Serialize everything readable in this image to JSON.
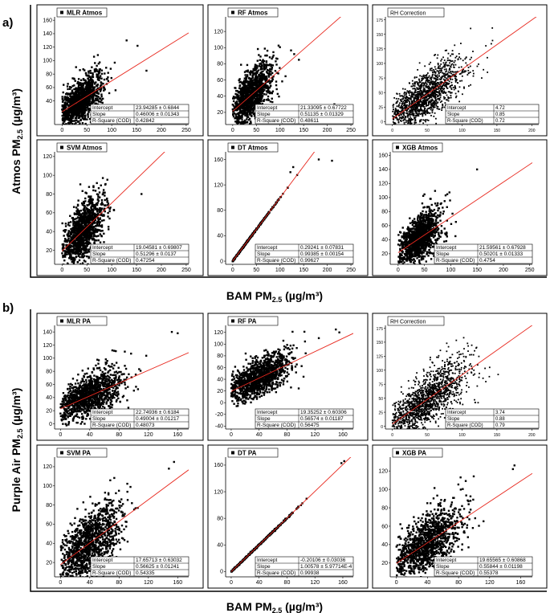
{
  "figure": {
    "section_labels": [
      "a)",
      "b)"
    ],
    "row_a": {
      "x_title": "BAM PM",
      "x_sub": "2.5",
      "x_unit": "(µg/m³)",
      "y_title": "Atmos PM",
      "y_sub": "2.5",
      "y_unit": "(µg/m³)"
    },
    "row_b": {
      "x_title": "BAM PM",
      "x_sub": "2.5",
      "x_unit": "(µg/m³)",
      "y_title": "Purple Air PM",
      "y_sub": "2.5",
      "y_unit": "(µg/m³)"
    },
    "stats_labels": [
      "Intercept",
      "Slope",
      "R-Square (COD)"
    ]
  },
  "colors": {
    "points": "#000000",
    "fit_line": "#e8281e",
    "frame": "#000000"
  },
  "chart_data": [
    {
      "type": "scatter",
      "title": "MLR Atmos",
      "style": "normal",
      "x_ticks": [
        0,
        50,
        100,
        150,
        200,
        250
      ],
      "y_ticks": [
        40,
        60,
        80,
        100,
        120,
        140,
        160
      ],
      "xlim": [
        -15,
        255
      ],
      "ylim": [
        5,
        165
      ],
      "intercept": 23.94285,
      "slope": 0.46006,
      "stats": [
        "23.94285 ± 0.6844",
        "0.46006 ± 0.01343",
        "0.42842"
      ],
      "cloud": {
        "xc": 38,
        "xs": 22,
        "yc": 42,
        "ys": 13,
        "n": 1200,
        "xmax": 130,
        "ymax": 160
      },
      "extra_points": [
        [
          152,
          122
        ],
        [
          170,
          85
        ],
        [
          130,
          130
        ]
      ]
    },
    {
      "type": "scatter",
      "title": "RF Atmos",
      "style": "normal",
      "x_ticks": [
        0,
        50,
        100,
        150,
        200,
        250
      ],
      "y_ticks": [
        20,
        40,
        60,
        80,
        100,
        120
      ],
      "xlim": [
        -15,
        255
      ],
      "ylim": [
        5,
        138
      ],
      "intercept": 21.33095,
      "slope": 0.51135,
      "stats": [
        "21.33095 ± 0.67722",
        "0.51135 ± 0.01329",
        "0.48611"
      ],
      "cloud": {
        "xc": 40,
        "xs": 22,
        "yc": 42,
        "ys": 12,
        "n": 1200,
        "xmax": 125,
        "ymax": 120
      },
      "extra_points": [
        [
          215,
          30
        ],
        [
          130,
          92
        ],
        [
          140,
          85
        ]
      ]
    },
    {
      "type": "scatter",
      "title": "RH Correction",
      "style": "small",
      "x_ticks": [
        0,
        50,
        100,
        150,
        200
      ],
      "y_ticks": [
        0,
        25,
        50,
        75,
        100,
        125,
        150,
        175
      ],
      "xlim": [
        -10,
        210
      ],
      "ylim": [
        -5,
        180
      ],
      "intercept": 4.72,
      "slope": 0.85,
      "stats": [
        "4.72",
        "0.85",
        "0.72"
      ],
      "cloud": {
        "xc": 45,
        "xs": 28,
        "yc": 40,
        "ys": 16,
        "n": 1400,
        "xmax": 190,
        "ymax": 175
      },
      "extra_points": []
    },
    {
      "type": "scatter",
      "title": "SVM Atmos",
      "style": "normal",
      "x_ticks": [
        0,
        50,
        100,
        150,
        200,
        250
      ],
      "y_ticks": [
        20,
        40,
        60,
        80,
        100,
        120
      ],
      "xlim": [
        -15,
        255
      ],
      "ylim": [
        5,
        125
      ],
      "intercept": 19.04581,
      "slope": 0.51296,
      "stats": [
        "19.04581 ± 0.69807",
        "0.51296 ± 0.0137",
        "0.47254"
      ],
      "cloud": {
        "xc": 42,
        "xs": 22,
        "yc": 42,
        "ys": 12,
        "n": 1200,
        "xmax": 130,
        "ymax": 120
      },
      "extra_points": [
        [
          215,
          22
        ],
        [
          160,
          80
        ]
      ]
    },
    {
      "type": "scatter",
      "title": "DT Atmos",
      "style": "normal",
      "x_ticks": [
        0,
        50,
        100,
        150,
        200,
        250
      ],
      "y_ticks": [
        0,
        40,
        80,
        120,
        160
      ],
      "xlim": [
        -15,
        255
      ],
      "ylim": [
        -5,
        172
      ],
      "intercept": 0.29241,
      "slope": 0.99385,
      "stats": [
        "0.29241 ± 0.07831",
        "0.99385 ± 0.00154",
        "0.99627"
      ],
      "cloud": {
        "xc": 35,
        "xs": 30,
        "yc": 0,
        "ys": 0,
        "n": 400,
        "xmax": 160,
        "ymax": 160
      },
      "linear": true,
      "extra_points": [
        [
          122,
          140
        ],
        [
          128,
          148
        ],
        [
          210,
          158
        ],
        [
          182,
          160
        ]
      ]
    },
    {
      "type": "scatter",
      "title": "XGB Atmos",
      "style": "normal",
      "x_ticks": [
        0,
        50,
        100,
        150,
        200,
        250
      ],
      "y_ticks": [
        20,
        40,
        60,
        80,
        100,
        120,
        140,
        160
      ],
      "xlim": [
        -15,
        255
      ],
      "ylim": [
        5,
        165
      ],
      "intercept": 21.59561,
      "slope": 0.50201,
      "stats": [
        "21.59561 ± 0.67928",
        "0.50201 ± 0.01333",
        "0.4754"
      ],
      "cloud": {
        "xc": 40,
        "xs": 22,
        "yc": 42,
        "ys": 13,
        "n": 1200,
        "xmax": 130,
        "ymax": 150
      },
      "extra_points": [
        [
          150,
          140
        ],
        [
          210,
          28
        ]
      ]
    },
    {
      "type": "scatter",
      "title": "MLR PA",
      "style": "normal",
      "x_ticks": [
        0,
        40,
        80,
        120,
        160
      ],
      "y_ticks": [
        0,
        20,
        40,
        60,
        80,
        100,
        120,
        140
      ],
      "xlim": [
        -8,
        175
      ],
      "ylim": [
        -8,
        150
      ],
      "intercept": 22.74936,
      "slope": 0.49004,
      "stats": [
        "22.74936 ± 0.6184",
        "0.49004 ± 0.01217",
        "0.48073"
      ],
      "cloud": {
        "xc": 40,
        "xs": 22,
        "yc": 42,
        "ys": 13,
        "n": 1200,
        "xmax": 160,
        "ymax": 145
      },
      "extra_points": [
        [
          152,
          140
        ],
        [
          160,
          138
        ]
      ]
    },
    {
      "type": "scatter",
      "title": "RF PA",
      "style": "normal",
      "x_ticks": [
        0,
        40,
        80,
        120,
        160
      ],
      "y_ticks": [
        -40,
        -20,
        0,
        20,
        40,
        60,
        80,
        100,
        120
      ],
      "xlim": [
        -8,
        175
      ],
      "ylim": [
        -45,
        132
      ],
      "intercept": 19.35252,
      "slope": 0.56574,
      "stats": [
        "19.35252 ± 0.60306",
        "0.56574 ± 0.01187",
        "0.56475"
      ],
      "cloud": {
        "xc": 40,
        "xs": 22,
        "yc": 42,
        "ys": 13,
        "n": 1200,
        "xmax": 160,
        "ymax": 125
      },
      "extra_points": [
        [
          150,
          125
        ],
        [
          155,
          120
        ]
      ]
    },
    {
      "type": "scatter",
      "title": "RH Correction",
      "style": "small",
      "x_ticks": [
        0,
        50,
        100,
        150,
        200
      ],
      "y_ticks": [
        0,
        25,
        50,
        75,
        100,
        125,
        150,
        175
      ],
      "xlim": [
        -10,
        210
      ],
      "ylim": [
        -5,
        180
      ],
      "intercept": 3.74,
      "slope": 0.88,
      "stats": [
        "3.74",
        "0.88",
        "0.79"
      ],
      "cloud": {
        "xc": 50,
        "xs": 30,
        "yc": 45,
        "ys": 18,
        "n": 1400,
        "xmax": 190,
        "ymax": 175
      },
      "extra_points": []
    },
    {
      "type": "scatter",
      "title": "SVM PA",
      "style": "normal",
      "x_ticks": [
        0,
        40,
        80,
        120,
        160
      ],
      "y_ticks": [
        20,
        40,
        60,
        80,
        100,
        120
      ],
      "xlim": [
        -8,
        175
      ],
      "ylim": [
        5,
        130
      ],
      "intercept": 17.65713,
      "slope": 0.56625,
      "stats": [
        "17.65713 ± 0.63032",
        "0.56625 ± 0.01241",
        "0.54335"
      ],
      "cloud": {
        "xc": 40,
        "xs": 22,
        "yc": 40,
        "ys": 13,
        "n": 1200,
        "xmax": 150,
        "ymax": 125
      },
      "extra_points": [
        [
          155,
          125
        ],
        [
          148,
          118
        ]
      ]
    },
    {
      "type": "scatter",
      "title": "DT PA",
      "style": "normal",
      "x_ticks": [
        0,
        40,
        80,
        120,
        160
      ],
      "y_ticks": [
        0,
        40,
        80,
        120,
        160
      ],
      "xlim": [
        -8,
        175
      ],
      "ylim": [
        -8,
        172
      ],
      "intercept": -0.20106,
      "slope": 1.00578,
      "stats": [
        "-0.20106 ± 0.03036",
        "1.00578 ± 5.97714E-4",
        "0.99938"
      ],
      "cloud": {
        "xc": 35,
        "xs": 28,
        "yc": 0,
        "ys": 0,
        "n": 400,
        "xmax": 165,
        "ymax": 165
      },
      "linear": true,
      "extra_points": [
        [
          158,
          163
        ],
        [
          162,
          166
        ]
      ]
    },
    {
      "type": "scatter",
      "title": "XGB PA",
      "style": "normal",
      "x_ticks": [
        0,
        40,
        80,
        120,
        160
      ],
      "y_ticks": [
        20,
        40,
        60,
        80,
        100,
        120
      ],
      "xlim": [
        -8,
        175
      ],
      "ylim": [
        5,
        135
      ],
      "intercept": 19.65565,
      "slope": 0.55844,
      "stats": [
        "19.65565 ± 0.60868",
        "0.55844 ± 0.01198",
        "0.55378"
      ],
      "cloud": {
        "xc": 40,
        "xs": 22,
        "yc": 42,
        "ys": 13,
        "n": 1200,
        "xmax": 150,
        "ymax": 125
      },
      "extra_points": [
        [
          150,
          122
        ],
        [
          152,
          126
        ]
      ]
    }
  ]
}
